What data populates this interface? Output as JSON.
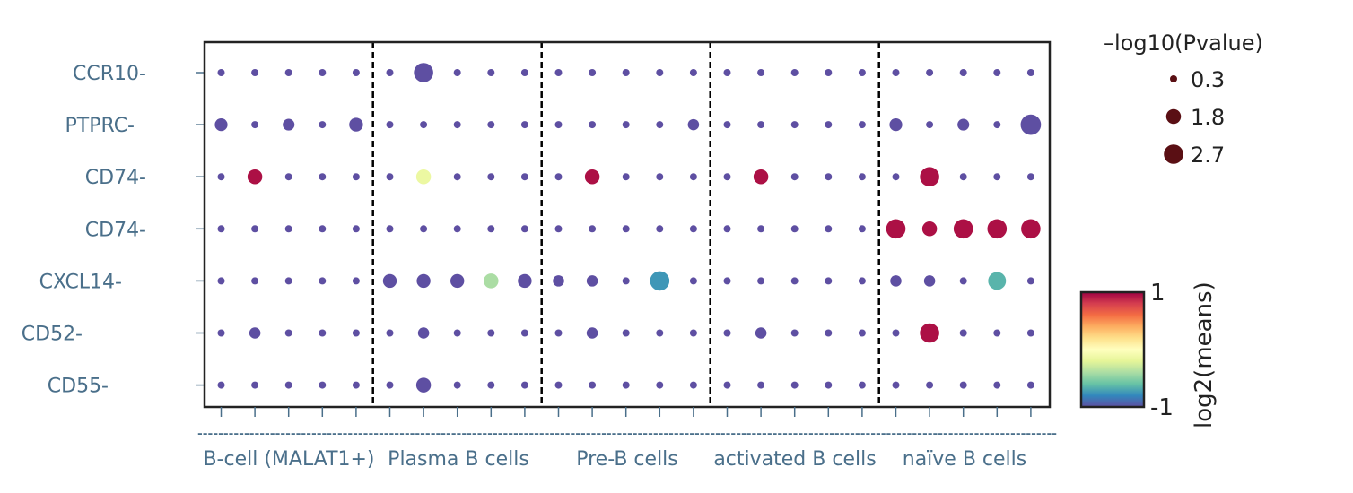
{
  "chart_data": {
    "type": "scatter",
    "subtype": "dot-plot",
    "y_categories": [
      "CCR10-",
      "PTPRC-",
      "CD74-",
      "CD74-",
      "CXCL14-",
      "CD52-",
      "CD55-"
    ],
    "x_groups": [
      "B-cell (MALAT1+)",
      "Plasma B cells",
      "Pre-B cells",
      "activated B cells",
      "naïve B cells"
    ],
    "columns_per_group": 5,
    "x_dash_label": "----------------------------------------------------------------------------------------------------------------------------------------------------------------------",
    "size_metric": "–log10(Pvalue)",
    "color_metric": "log2(means)",
    "size_legend": [
      {
        "label": "0.3",
        "value": 0.3
      },
      {
        "label": "1.8",
        "value": 1.8
      },
      {
        "label": "2.7",
        "value": 2.7
      }
    ],
    "color_range": [
      -1,
      1
    ],
    "colorbar_ticks": [
      {
        "label": "1",
        "value": 1
      },
      {
        "label": "-1",
        "value": -1
      }
    ],
    "colormap": [
      "#5e4fa2",
      "#3288bd",
      "#66c2a5",
      "#abdda4",
      "#e6f598",
      "#ffffbf",
      "#fee08b",
      "#fdae61",
      "#f46d43",
      "#d53e4f",
      "#9e0142"
    ],
    "legend_marker_color": "#5a0f14",
    "grid": false,
    "separator_style": "dashed",
    "size_matrix": [
      [
        0.3,
        0.3,
        0.3,
        0.3,
        0.3,
        0.3,
        2.7,
        0.3,
        0.3,
        0.3,
        0.3,
        0.3,
        0.3,
        0.3,
        0.3,
        0.3,
        0.3,
        0.3,
        0.3,
        0.3,
        0.3,
        0.3,
        0.3,
        0.3,
        0.3
      ],
      [
        1.4,
        0.3,
        1.2,
        0.3,
        1.6,
        0.3,
        0.3,
        0.3,
        0.3,
        0.3,
        0.3,
        0.3,
        0.3,
        0.3,
        1.1,
        0.3,
        0.3,
        0.3,
        0.3,
        0.3,
        1.4,
        0.3,
        1.2,
        0.3,
        2.9
      ],
      [
        0.3,
        1.8,
        0.3,
        0.3,
        0.3,
        0.3,
        1.8,
        0.3,
        0.3,
        0.3,
        0.3,
        1.8,
        0.3,
        0.3,
        0.3,
        0.3,
        1.8,
        0.3,
        0.3,
        0.3,
        0.3,
        2.7,
        0.3,
        0.3,
        0.3
      ],
      [
        0.3,
        0.3,
        0.3,
        0.3,
        0.3,
        0.3,
        0.3,
        0.3,
        0.3,
        0.3,
        0.3,
        0.3,
        0.3,
        0.3,
        0.3,
        0.3,
        0.3,
        0.3,
        0.3,
        0.3,
        2.7,
        1.8,
        2.7,
        2.7,
        2.7
      ],
      [
        0.3,
        0.3,
        0.3,
        0.3,
        0.3,
        1.6,
        1.6,
        1.6,
        1.8,
        1.6,
        1.1,
        1.1,
        0.3,
        2.7,
        0.3,
        0.3,
        0.3,
        0.3,
        0.3,
        0.3,
        1.1,
        1.1,
        0.3,
        2.4,
        0.3
      ],
      [
        0.3,
        1.1,
        0.3,
        0.3,
        0.3,
        0.3,
        1.1,
        0.3,
        0.3,
        0.3,
        0.3,
        1.1,
        0.3,
        0.3,
        0.3,
        0.3,
        1.1,
        0.3,
        0.3,
        0.3,
        0.3,
        2.7,
        0.3,
        0.3,
        0.3
      ],
      [
        0.3,
        0.3,
        0.3,
        0.3,
        0.3,
        0.3,
        1.8,
        0.3,
        0.3,
        0.3,
        0.3,
        0.3,
        0.3,
        0.3,
        0.3,
        0.3,
        0.3,
        0.3,
        0.3,
        0.3,
        0.3,
        0.3,
        0.3,
        0.3,
        0.3
      ]
    ],
    "color_matrix": [
      [
        -1,
        -1,
        -1,
        -1,
        -1,
        -1,
        -1,
        -1,
        -1,
        -1,
        -1,
        -1,
        -1,
        -1,
        -1,
        -1,
        -1,
        -1,
        -1,
        -1,
        -1,
        -1,
        -1,
        -1,
        -1
      ],
      [
        -1,
        -1,
        -1,
        -1,
        -1,
        -1,
        -1,
        -1,
        -1,
        -1,
        -1,
        -1,
        -1,
        -1,
        -1,
        -1,
        -1,
        -1,
        -1,
        -1,
        -1,
        -1,
        -1,
        -1,
        -1
      ],
      [
        -1,
        0.95,
        -1,
        -1,
        -1,
        -1,
        -0.15,
        -1,
        -1,
        -1,
        -1,
        0.95,
        -1,
        -1,
        -1,
        -1,
        0.95,
        -1,
        -1,
        -1,
        -1,
        0.95,
        -1,
        -1,
        -1
      ],
      [
        -1,
        -1,
        -1,
        -1,
        -1,
        -1,
        -1,
        -1,
        -1,
        -1,
        -1,
        -1,
        -1,
        -1,
        -1,
        -1,
        -1,
        -1,
        -1,
        -1,
        0.95,
        0.95,
        0.95,
        0.95,
        0.95
      ],
      [
        -1,
        -1,
        -1,
        -1,
        -1,
        -1,
        -1,
        -1,
        -0.4,
        -1,
        -1,
        -1,
        -1,
        -0.75,
        -1,
        -1,
        -1,
        -1,
        -1,
        -1,
        -1,
        -1,
        -1,
        -0.65,
        -1
      ],
      [
        -1,
        -1,
        -1,
        -1,
        -1,
        -1,
        -1,
        -1,
        -1,
        -1,
        -1,
        -1,
        -1,
        -1,
        -1,
        -1,
        -1,
        -1,
        -1,
        -1,
        -1,
        0.95,
        -1,
        -1,
        -1
      ],
      [
        -1,
        -1,
        -1,
        -1,
        -1,
        -1,
        -1,
        -1,
        -1,
        -1,
        -1,
        -1,
        -1,
        -1,
        -1,
        -1,
        -1,
        -1,
        -1,
        -1,
        -1,
        -1,
        -1,
        -1,
        -1
      ]
    ]
  }
}
